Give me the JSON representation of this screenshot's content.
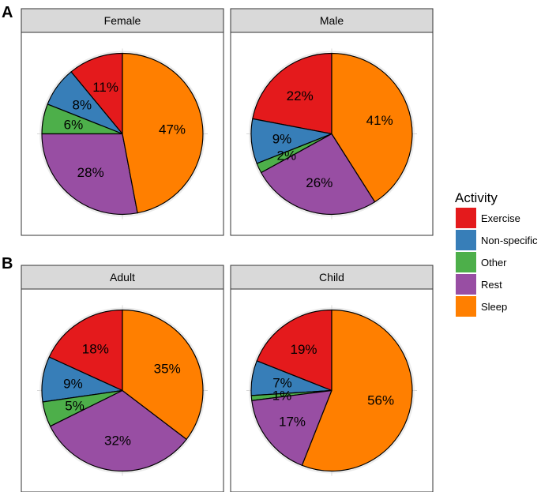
{
  "section_labels": [
    "A",
    "B"
  ],
  "legend": {
    "title": "Activity",
    "items": [
      {
        "label": "Exercise",
        "color": "#e41a1c"
      },
      {
        "label": "Non-specific",
        "color": "#377eb8"
      },
      {
        "label": "Other",
        "color": "#4daf4a"
      },
      {
        "label": "Rest",
        "color": "#984ea3"
      },
      {
        "label": "Sleep",
        "color": "#ff7f00"
      }
    ]
  },
  "chart_data": [
    {
      "type": "pie",
      "section": "A",
      "title": "Female",
      "slices": [
        {
          "category": "Exercise",
          "value": 11,
          "label": "11%"
        },
        {
          "category": "Non-specific",
          "value": 8,
          "label": "8%"
        },
        {
          "category": "Other",
          "value": 6,
          "label": "6%"
        },
        {
          "category": "Rest",
          "value": 28,
          "label": "28%"
        },
        {
          "category": "Sleep",
          "value": 47,
          "label": "47%"
        }
      ]
    },
    {
      "type": "pie",
      "section": "A",
      "title": "Male",
      "slices": [
        {
          "category": "Exercise",
          "value": 22,
          "label": "22%"
        },
        {
          "category": "Non-specific",
          "value": 9,
          "label": "9%"
        },
        {
          "category": "Other",
          "value": 2,
          "label": "2%"
        },
        {
          "category": "Rest",
          "value": 26,
          "label": "26%"
        },
        {
          "category": "Sleep",
          "value": 41,
          "label": "41%"
        }
      ]
    },
    {
      "type": "pie",
      "section": "B",
      "title": "Adult",
      "slices": [
        {
          "category": "Exercise",
          "value": 18,
          "label": "18%"
        },
        {
          "category": "Non-specific",
          "value": 9,
          "label": "9%"
        },
        {
          "category": "Other",
          "value": 5,
          "label": "5%"
        },
        {
          "category": "Rest",
          "value": 32,
          "label": "32%"
        },
        {
          "category": "Sleep",
          "value": 35,
          "label": "35%"
        }
      ]
    },
    {
      "type": "pie",
      "section": "B",
      "title": "Child",
      "slices": [
        {
          "category": "Exercise",
          "value": 19,
          "label": "19%"
        },
        {
          "category": "Non-specific",
          "value": 7,
          "label": "7%"
        },
        {
          "category": "Other",
          "value": 1,
          "label": "1%"
        },
        {
          "category": "Rest",
          "value": 17,
          "label": "17%"
        },
        {
          "category": "Sleep",
          "value": 56,
          "label": "56%"
        }
      ]
    }
  ]
}
